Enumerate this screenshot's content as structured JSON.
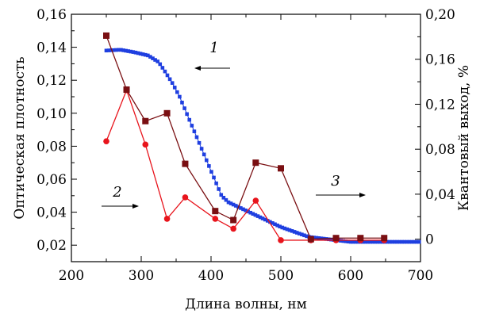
{
  "chart_data": {
    "type": "scatter",
    "xlabel": "Длина волны, нм",
    "ylabel_left": "Оптическая плотность",
    "ylabel_right": "Квантовый выход, %",
    "xlim": [
      200,
      700
    ],
    "ylim_left": [
      0.01,
      0.16
    ],
    "ylim_right": [
      -0.02,
      0.2
    ],
    "x_ticks": [
      200,
      300,
      400,
      500,
      600,
      700
    ],
    "y_left_ticks": [
      0.02,
      0.04,
      0.06,
      0.08,
      0.1,
      0.12,
      0.14,
      0.16
    ],
    "y_left_tick_labels": [
      "0,02",
      "0,04",
      "0,06",
      "0,08",
      "0,10",
      "0,12",
      "0,14",
      "0,16"
    ],
    "y_right_ticks": [
      0,
      0.04,
      0.08,
      0.12,
      0.16,
      0.2
    ],
    "y_right_tick_labels": [
      "0",
      "0,04",
      "0,08",
      "0,12",
      "0,16",
      "0,20"
    ],
    "grid": false,
    "colors": {
      "series1": "#1f3fe0",
      "series2": "#e8141c",
      "series3": "#7a0f12"
    },
    "series": [
      {
        "label": "1",
        "axis": "left",
        "marker": "square-small",
        "color": "#1f3fe0",
        "anchors": [
          [
            250,
            0.138
          ],
          [
            270,
            0.1385
          ],
          [
            290,
            0.137
          ],
          [
            310,
            0.135
          ],
          [
            325,
            0.131
          ],
          [
            333,
            0.126
          ],
          [
            345,
            0.118
          ],
          [
            355,
            0.11
          ],
          [
            365,
            0.1
          ],
          [
            375,
            0.09
          ],
          [
            385,
            0.08
          ],
          [
            395,
            0.07
          ],
          [
            405,
            0.06
          ],
          [
            415,
            0.05
          ],
          [
            425,
            0.046
          ],
          [
            440,
            0.043
          ],
          [
            460,
            0.039
          ],
          [
            480,
            0.035
          ],
          [
            500,
            0.031
          ],
          [
            520,
            0.028
          ],
          [
            540,
            0.025
          ],
          [
            560,
            0.024
          ],
          [
            580,
            0.023
          ],
          [
            600,
            0.022
          ],
          [
            640,
            0.022
          ],
          [
            700,
            0.022
          ]
        ],
        "step": 3.5
      },
      {
        "label": "2",
        "axis": "left",
        "marker": "circle",
        "color": "#e8141c",
        "x": [
          250,
          279,
          306,
          337,
          363,
          406,
          432,
          464,
          500,
          543,
          579,
          614,
          648
        ],
        "y": [
          0.083,
          0.114,
          0.081,
          0.036,
          0.049,
          0.036,
          0.03,
          0.047,
          0.023,
          0.023,
          0.023,
          0.023,
          0.023
        ]
      },
      {
        "label": "3",
        "axis": "right",
        "marker": "square",
        "color": "#7a0f12",
        "x": [
          250,
          279,
          306,
          337,
          363,
          406,
          432,
          464,
          500,
          543,
          579,
          614,
          648
        ],
        "y": [
          0.181,
          0.133,
          0.105,
          0.112,
          0.067,
          0.025,
          0.017,
          0.068,
          0.063,
          0.0,
          0.001,
          0.001,
          0.001
        ]
      }
    ],
    "annotations": [
      {
        "text": "1",
        "arrow": "left"
      },
      {
        "text": "2",
        "arrow": "right"
      },
      {
        "text": "3",
        "arrow": "right"
      }
    ]
  }
}
